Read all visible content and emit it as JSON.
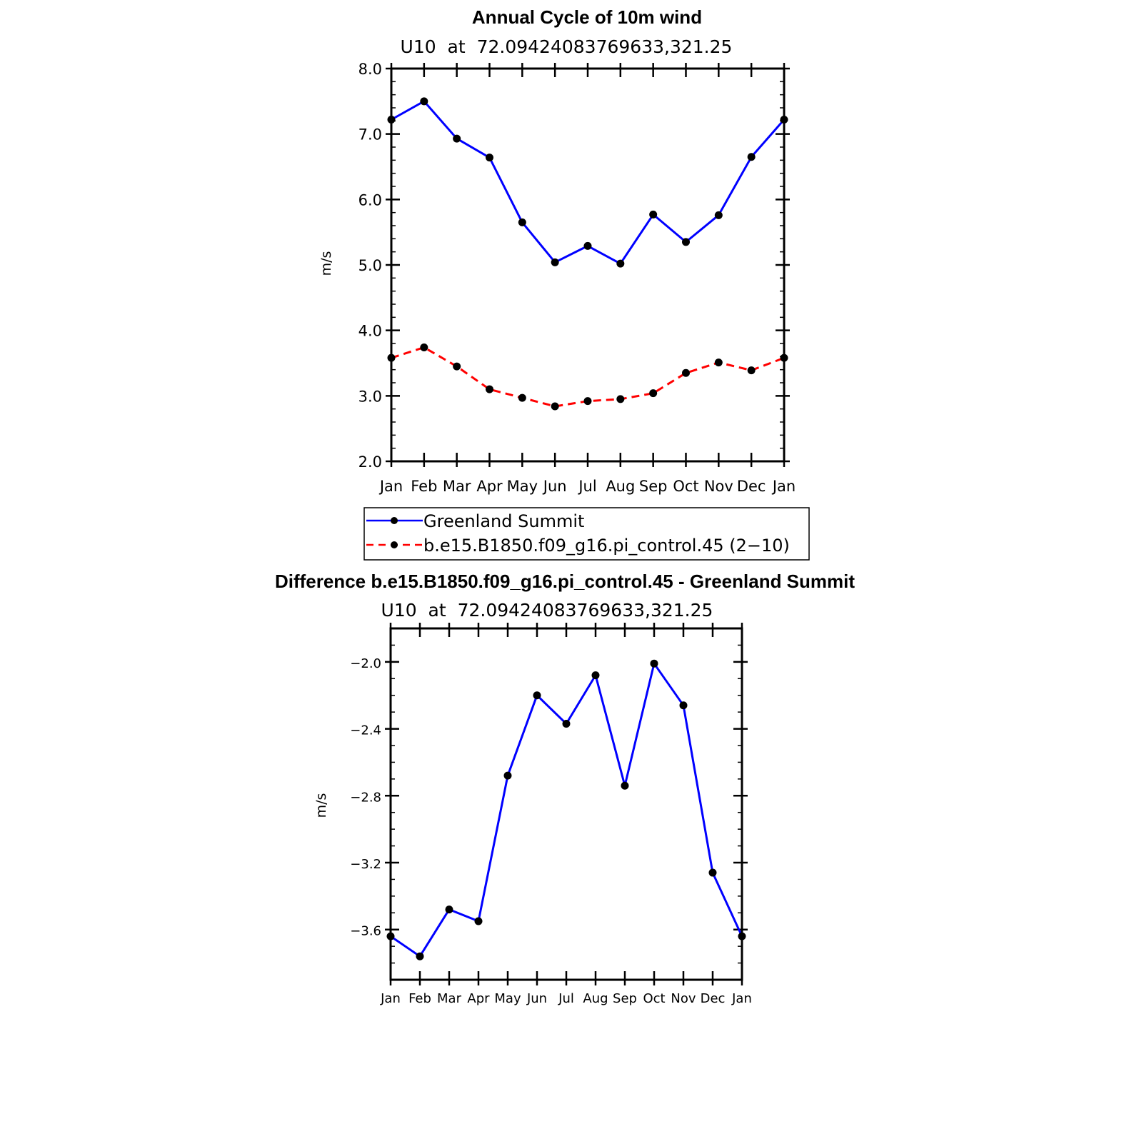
{
  "chart_data": [
    {
      "type": "line",
      "title": "Annual Cycle of 10m wind",
      "subtitle": "U10  at  72.09424083769633,321.25",
      "ylabel": "m/s",
      "xlabel": "",
      "categories": [
        "Jan",
        "Feb",
        "Mar",
        "Apr",
        "May",
        "Jun",
        "Jul",
        "Aug",
        "Sep",
        "Oct",
        "Nov",
        "Dec",
        "Jan"
      ],
      "ylim": [
        2.0,
        8.0
      ],
      "yticks": [
        "2.0",
        "3.0",
        "4.0",
        "5.0",
        "6.0",
        "7.0",
        "8.0"
      ],
      "grid": false,
      "legend_position": "bottom",
      "series": [
        {
          "name": "Greenland Summit",
          "color": "#0000ff",
          "dash": "solid",
          "marker": "dot",
          "values": [
            7.22,
            7.5,
            6.93,
            6.64,
            5.65,
            5.04,
            5.29,
            5.02,
            5.77,
            5.35,
            5.76,
            6.65,
            7.22
          ]
        },
        {
          "name": "b.e15.B1850.f09_g16.pi_control.45 (2−10)",
          "color": "#ff0000",
          "dash": "dashed",
          "marker": "dot",
          "values": [
            3.58,
            3.74,
            3.45,
            3.1,
            2.97,
            2.84,
            2.92,
            2.95,
            3.04,
            3.35,
            3.51,
            3.39,
            3.58
          ]
        }
      ]
    },
    {
      "type": "line",
      "title": "Difference b.e15.B1850.f09_g16.pi_control.45 - Greenland Summit",
      "subtitle": "U10  at  72.09424083769633,321.25",
      "ylabel": "m/s",
      "xlabel": "",
      "categories": [
        "Jan",
        "Feb",
        "Mar",
        "Apr",
        "May",
        "Jun",
        "Jul",
        "Aug",
        "Sep",
        "Oct",
        "Nov",
        "Dec",
        "Jan"
      ],
      "ylim": [
        -3.9,
        -1.8
      ],
      "yticks": [
        "−2.0",
        "−2.4",
        "−2.8",
        "−3.2",
        "−3.6"
      ],
      "grid": false,
      "series": [
        {
          "name": "",
          "color": "#0000ff",
          "dash": "solid",
          "marker": "dot",
          "values": [
            -3.64,
            -3.76,
            -3.48,
            -3.55,
            -2.68,
            -2.2,
            -2.37,
            -2.08,
            -2.74,
            -2.01,
            -2.26,
            -3.26,
            -3.64
          ]
        }
      ]
    }
  ]
}
